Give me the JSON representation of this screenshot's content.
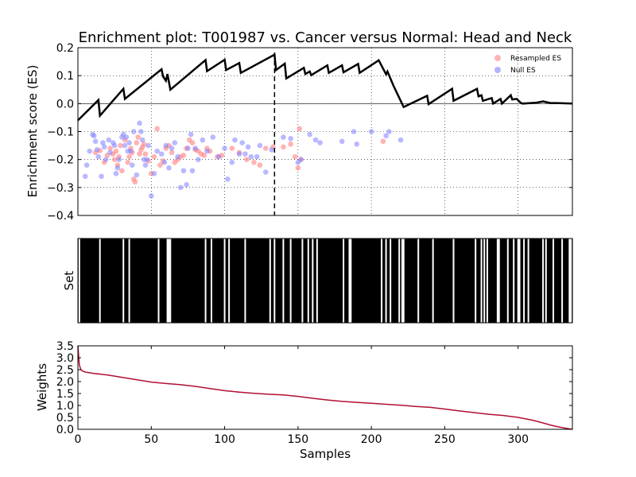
{
  "figure": {
    "title": "Enrichment plot: T001987 vs. Cancer versus Normal: Head and Neck"
  },
  "chart_data": [
    {
      "type": "line",
      "panel": "enrichment",
      "ylabel": "Enrichment score (ES)",
      "xlim": [
        0,
        337
      ],
      "ylim": [
        -0.4,
        0.2
      ],
      "yticks": [
        "0.2",
        "0.1",
        "0.0",
        "−0.1",
        "−0.2",
        "−0.3",
        "−0.4"
      ],
      "grid": true,
      "legend_position": "top-right",
      "legend": [
        {
          "label": "Resampled ES",
          "color": "#ff8080"
        },
        {
          "label": "Null ES",
          "color": "#8080ff"
        }
      ],
      "peak_x": 134,
      "es_curve": {
        "color": "#000000",
        "points": [
          [
            0,
            -0.06
          ],
          [
            14,
            0.013
          ],
          [
            15,
            -0.043
          ],
          [
            31,
            0.053
          ],
          [
            32,
            0.017
          ],
          [
            57,
            0.123
          ],
          [
            58,
            0.097
          ],
          [
            60,
            0.082
          ],
          [
            61,
            0.106
          ],
          [
            63,
            0.05
          ],
          [
            87,
            0.156
          ],
          [
            88,
            0.116
          ],
          [
            100,
            0.157
          ],
          [
            101,
            0.12
          ],
          [
            110,
            0.145
          ],
          [
            111,
            0.11
          ],
          [
            134,
            0.175
          ],
          [
            135,
            0.12
          ],
          [
            141,
            0.143
          ],
          [
            142,
            0.09
          ],
          [
            154,
            0.128
          ],
          [
            155,
            0.106
          ],
          [
            158,
            0.115
          ],
          [
            159,
            0.102
          ],
          [
            170,
            0.137
          ],
          [
            171,
            0.11
          ],
          [
            180,
            0.137
          ],
          [
            181,
            0.112
          ],
          [
            191,
            0.142
          ],
          [
            192,
            0.11
          ],
          [
            205,
            0.155
          ],
          [
            210,
            0.105
          ],
          [
            211,
            0.115
          ],
          [
            215,
            0.065
          ],
          [
            222,
            -0.012
          ],
          [
            238,
            0.028
          ],
          [
            239,
            -0.002
          ],
          [
            255,
            0.053
          ],
          [
            256,
            0.01
          ],
          [
            272,
            0.053
          ],
          [
            273,
            0.026
          ],
          [
            275,
            0.03
          ],
          [
            276,
            0.01
          ],
          [
            282,
            0.02
          ],
          [
            283,
            0.0
          ],
          [
            288,
            0.017
          ],
          [
            289,
            0.0
          ],
          [
            295,
            0.03
          ],
          [
            296,
            0.015
          ],
          [
            299,
            0.017
          ],
          [
            302,
            0.002
          ],
          [
            303,
            0.0
          ],
          [
            312,
            0.003
          ],
          [
            317,
            0.008
          ],
          [
            322,
            0.002
          ],
          [
            326,
            0.002
          ],
          [
            337,
            0.0
          ]
        ]
      },
      "resampled_es": [
        [
          12,
          -0.175
        ],
        [
          15,
          -0.168
        ],
        [
          18,
          -0.21
        ],
        [
          20,
          -0.185
        ],
        [
          22,
          -0.16
        ],
        [
          24,
          -0.18
        ],
        [
          25,
          -0.2
        ],
        [
          26,
          -0.17
        ],
        [
          27,
          -0.22
        ],
        [
          28,
          -0.19
        ],
        [
          29,
          -0.15
        ],
        [
          30,
          -0.24
        ],
        [
          32,
          -0.13
        ],
        [
          34,
          -0.21
        ],
        [
          35,
          -0.19
        ],
        [
          36,
          -0.16
        ],
        [
          37,
          -0.175
        ],
        [
          38,
          -0.27
        ],
        [
          39,
          -0.28
        ],
        [
          40,
          -0.14
        ],
        [
          41,
          -0.12
        ],
        [
          42,
          -0.18
        ],
        [
          43,
          -0.165
        ],
        [
          44,
          -0.155
        ],
        [
          45,
          -0.145
        ],
        [
          46,
          -0.18
        ],
        [
          48,
          -0.205
        ],
        [
          50,
          -0.25
        ],
        [
          52,
          -0.19
        ],
        [
          54,
          -0.09
        ],
        [
          56,
          -0.22
        ],
        [
          58,
          -0.205
        ],
        [
          60,
          -0.16
        ],
        [
          62,
          -0.15
        ],
        [
          64,
          -0.175
        ],
        [
          66,
          -0.21
        ],
        [
          68,
          -0.2
        ],
        [
          70,
          -0.19
        ],
        [
          72,
          -0.185
        ],
        [
          74,
          -0.16
        ],
        [
          76,
          -0.13
        ],
        [
          78,
          -0.14
        ],
        [
          80,
          -0.165
        ],
        [
          82,
          -0.17
        ],
        [
          84,
          -0.18
        ],
        [
          86,
          -0.185
        ],
        [
          88,
          -0.16
        ],
        [
          90,
          -0.17
        ],
        [
          95,
          -0.19
        ],
        [
          98,
          -0.185
        ],
        [
          105,
          -0.16
        ],
        [
          110,
          -0.175
        ],
        [
          115,
          -0.2
        ],
        [
          120,
          -0.21
        ],
        [
          124,
          -0.22
        ],
        [
          128,
          -0.16
        ],
        [
          133,
          -0.155
        ],
        [
          140,
          -0.155
        ],
        [
          145,
          -0.145
        ],
        [
          148,
          -0.19
        ],
        [
          150,
          -0.23
        ],
        [
          151,
          -0.09
        ],
        [
          152,
          -0.2
        ],
        [
          208,
          -0.135
        ]
      ],
      "null_es": [
        [
          5,
          -0.26
        ],
        [
          6,
          -0.22
        ],
        [
          8,
          -0.17
        ],
        [
          10,
          -0.11
        ],
        [
          11,
          -0.115
        ],
        [
          12,
          -0.135
        ],
        [
          13,
          -0.165
        ],
        [
          14,
          -0.19
        ],
        [
          16,
          -0.26
        ],
        [
          17,
          -0.14
        ],
        [
          18,
          -0.155
        ],
        [
          19,
          -0.2
        ],
        [
          21,
          -0.13
        ],
        [
          22,
          -0.175
        ],
        [
          24,
          -0.14
        ],
        [
          25,
          -0.15
        ],
        [
          26,
          -0.25
        ],
        [
          27,
          -0.23
        ],
        [
          28,
          -0.2
        ],
        [
          30,
          -0.12
        ],
        [
          31,
          -0.11
        ],
        [
          32,
          -0.15
        ],
        [
          33,
          -0.12
        ],
        [
          34,
          -0.17
        ],
        [
          35,
          -0.14
        ],
        [
          36,
          -0.17
        ],
        [
          37,
          -0.22
        ],
        [
          38,
          -0.1
        ],
        [
          40,
          -0.255
        ],
        [
          42,
          -0.07
        ],
        [
          43,
          -0.1
        ],
        [
          44,
          -0.13
        ],
        [
          45,
          -0.2
        ],
        [
          46,
          -0.22
        ],
        [
          47,
          -0.2
        ],
        [
          48,
          -0.15
        ],
        [
          50,
          -0.33
        ],
        [
          52,
          -0.25
        ],
        [
          54,
          -0.17
        ],
        [
          57,
          -0.18
        ],
        [
          59,
          -0.21
        ],
        [
          60,
          -0.15
        ],
        [
          62,
          -0.23
        ],
        [
          64,
          -0.16
        ],
        [
          66,
          -0.14
        ],
        [
          68,
          -0.19
        ],
        [
          70,
          -0.3
        ],
        [
          72,
          -0.24
        ],
        [
          74,
          -0.29
        ],
        [
          75,
          -0.16
        ],
        [
          77,
          -0.11
        ],
        [
          78,
          -0.24
        ],
        [
          80,
          -0.16
        ],
        [
          82,
          -0.2
        ],
        [
          85,
          -0.13
        ],
        [
          88,
          -0.17
        ],
        [
          92,
          -0.12
        ],
        [
          96,
          -0.19
        ],
        [
          100,
          -0.16
        ],
        [
          102,
          -0.27
        ],
        [
          105,
          -0.21
        ],
        [
          107,
          -0.13
        ],
        [
          110,
          -0.18
        ],
        [
          112,
          -0.14
        ],
        [
          114,
          -0.18
        ],
        [
          116,
          -0.155
        ],
        [
          118,
          -0.19
        ],
        [
          122,
          -0.19
        ],
        [
          124,
          -0.15
        ],
        [
          128,
          -0.245
        ],
        [
          132,
          -0.165
        ],
        [
          140,
          -0.12
        ],
        [
          145,
          -0.125
        ],
        [
          150,
          -0.21
        ],
        [
          152,
          -0.2
        ],
        [
          158,
          -0.11
        ],
        [
          162,
          -0.13
        ],
        [
          165,
          -0.14
        ],
        [
          180,
          -0.135
        ],
        [
          188,
          -0.1
        ],
        [
          190,
          -0.145
        ],
        [
          200,
          -0.1
        ],
        [
          210,
          -0.115
        ],
        [
          212,
          -0.1
        ],
        [
          220,
          -0.13
        ]
      ]
    },
    {
      "type": "heatmap",
      "panel": "set",
      "ylabel": "Set",
      "xlim": [
        0,
        337
      ],
      "background": "#000000",
      "hit_color": "#ffffff",
      "hits": [
        1,
        15,
        31,
        35,
        55,
        61,
        62,
        63,
        87,
        91,
        100,
        103,
        114,
        131,
        134,
        140,
        145,
        153,
        157,
        160,
        163,
        181,
        185,
        186,
        207,
        210,
        213,
        219,
        221,
        222,
        232,
        242,
        256,
        271,
        275,
        277,
        279,
        286,
        287,
        293,
        297,
        300,
        301,
        304,
        307,
        317,
        319,
        324,
        330,
        335,
        336
      ]
    },
    {
      "type": "line",
      "panel": "weights",
      "ylabel": "Weights",
      "xlabel": "Samples",
      "xlim": [
        0,
        337
      ],
      "ylim": [
        0.0,
        3.5
      ],
      "yticks": [
        "3.5",
        "3.0",
        "2.5",
        "2.0",
        "1.5",
        "1.0",
        "0.5",
        "0.0"
      ],
      "xticks": [
        "0",
        "50",
        "100",
        "150",
        "200",
        "250",
        "300"
      ],
      "color": "#b01030",
      "points": [
        [
          0,
          3.5
        ],
        [
          1,
          2.7
        ],
        [
          2,
          2.5
        ],
        [
          3,
          2.45
        ],
        [
          5,
          2.4
        ],
        [
          10,
          2.35
        ],
        [
          20,
          2.28
        ],
        [
          30,
          2.18
        ],
        [
          40,
          2.08
        ],
        [
          50,
          1.98
        ],
        [
          60,
          1.92
        ],
        [
          70,
          1.87
        ],
        [
          80,
          1.8
        ],
        [
          90,
          1.71
        ],
        [
          100,
          1.62
        ],
        [
          110,
          1.56
        ],
        [
          120,
          1.51
        ],
        [
          130,
          1.47
        ],
        [
          140,
          1.44
        ],
        [
          150,
          1.38
        ],
        [
          160,
          1.3
        ],
        [
          170,
          1.23
        ],
        [
          180,
          1.17
        ],
        [
          190,
          1.13
        ],
        [
          200,
          1.09
        ],
        [
          210,
          1.05
        ],
        [
          220,
          1.01
        ],
        [
          230,
          0.96
        ],
        [
          240,
          0.92
        ],
        [
          250,
          0.85
        ],
        [
          260,
          0.77
        ],
        [
          270,
          0.7
        ],
        [
          280,
          0.63
        ],
        [
          290,
          0.58
        ],
        [
          300,
          0.5
        ],
        [
          310,
          0.38
        ],
        [
          318,
          0.25
        ],
        [
          322,
          0.18
        ],
        [
          326,
          0.12
        ],
        [
          330,
          0.07
        ],
        [
          334,
          0.03
        ],
        [
          337,
          0.0
        ]
      ]
    }
  ]
}
